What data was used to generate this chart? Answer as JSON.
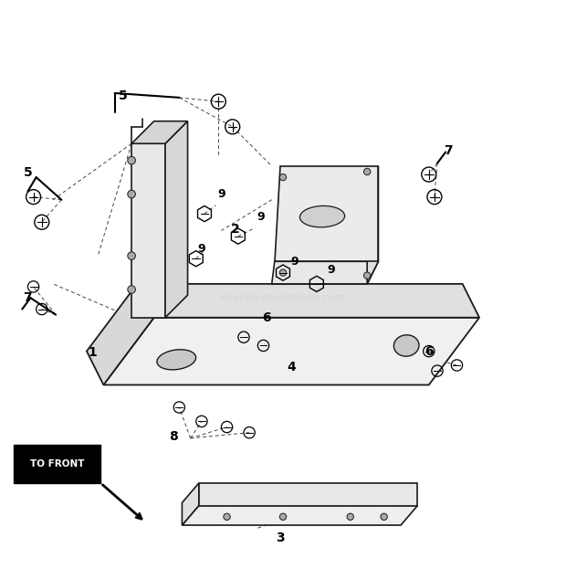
{
  "bg_color": "#ffffff",
  "line_color": "#1a1a1a",
  "dashed_color": "#555555",
  "watermark_text": "eReplacementParts.com",
  "watermark_color": "#cccccc",
  "watermark_alpha": 0.5,
  "to_front_text": "TO FRONT",
  "figsize": [
    6.2,
    6.34
  ],
  "dpi": 100
}
